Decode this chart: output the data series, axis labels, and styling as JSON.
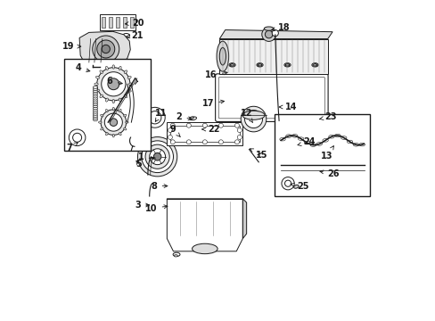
{
  "bg_color": "#ffffff",
  "fig_width": 4.89,
  "fig_height": 3.6,
  "dpi": 100,
  "line_color": "#1a1a1a",
  "label_positions": {
    "1": {
      "pt": [
        0.31,
        0.505
      ],
      "txt": [
        0.268,
        0.51
      ]
    },
    "2": {
      "pt": [
        0.428,
        0.628
      ],
      "txt": [
        0.388,
        0.638
      ]
    },
    "3": {
      "pt": [
        0.295,
        0.36
      ],
      "txt": [
        0.258,
        0.36
      ]
    },
    "4": {
      "pt": [
        0.108,
        0.778
      ],
      "txt": [
        0.072,
        0.79
      ]
    },
    "5": {
      "pt": [
        0.238,
        0.508
      ],
      "txt": [
        0.242,
        0.488
      ]
    },
    "6": {
      "pt": [
        0.21,
        0.74
      ],
      "txt": [
        0.17,
        0.748
      ]
    },
    "7": {
      "pt": [
        0.062,
        0.558
      ],
      "txt": [
        0.042,
        0.538
      ]
    },
    "8": {
      "pt": [
        0.352,
        0.42
      ],
      "txt": [
        0.31,
        0.42
      ]
    },
    "9": {
      "pt": [
        0.388,
        0.568
      ],
      "txt": [
        0.368,
        0.598
      ]
    },
    "10": {
      "pt": [
        0.352,
        0.358
      ],
      "txt": [
        0.31,
        0.35
      ]
    },
    "11": {
      "pt": [
        0.302,
        0.62
      ],
      "txt": [
        0.302,
        0.648
      ]
    },
    "12": {
      "pt": [
        0.61,
        0.618
      ],
      "txt": [
        0.608,
        0.648
      ]
    },
    "13": {
      "pt": [
        0.865,
        0.548
      ],
      "txt": [
        0.862,
        0.515
      ]
    },
    "14": {
      "pt": [
        0.682,
        0.668
      ],
      "txt": [
        0.712,
        0.668
      ]
    },
    "15": {
      "pt": [
        0.598,
        0.538
      ],
      "txt": [
        0.618,
        0.518
      ]
    },
    "16": {
      "pt": [
        0.54,
        0.778
      ],
      "txt": [
        0.498,
        0.768
      ]
    },
    "17": {
      "pt": [
        0.53,
        0.688
      ],
      "txt": [
        0.488,
        0.678
      ]
    },
    "18": {
      "pt": [
        0.658,
        0.908
      ],
      "txt": [
        0.688,
        0.918
      ]
    },
    "19": {
      "pt": [
        0.08,
        0.858
      ],
      "txt": [
        0.048,
        0.858
      ]
    },
    "20": {
      "pt": [
        0.198,
        0.928
      ],
      "txt": [
        0.23,
        0.932
      ]
    },
    "21": {
      "pt": [
        0.202,
        0.888
      ],
      "txt": [
        0.228,
        0.892
      ]
    },
    "22": {
      "pt": [
        0.448,
        0.598
      ],
      "txt": [
        0.468,
        0.598
      ]
    },
    "23": {
      "pt": [
        0.81,
        0.628
      ],
      "txt": [
        0.835,
        0.638
      ]
    },
    "24": {
      "pt": [
        0.748,
        0.548
      ],
      "txt": [
        0.768,
        0.558
      ]
    },
    "25": {
      "pt": [
        0.718,
        0.428
      ],
      "txt": [
        0.748,
        0.418
      ]
    },
    "26": {
      "pt": [
        0.81,
        0.468
      ],
      "txt": [
        0.845,
        0.458
      ]
    }
  }
}
